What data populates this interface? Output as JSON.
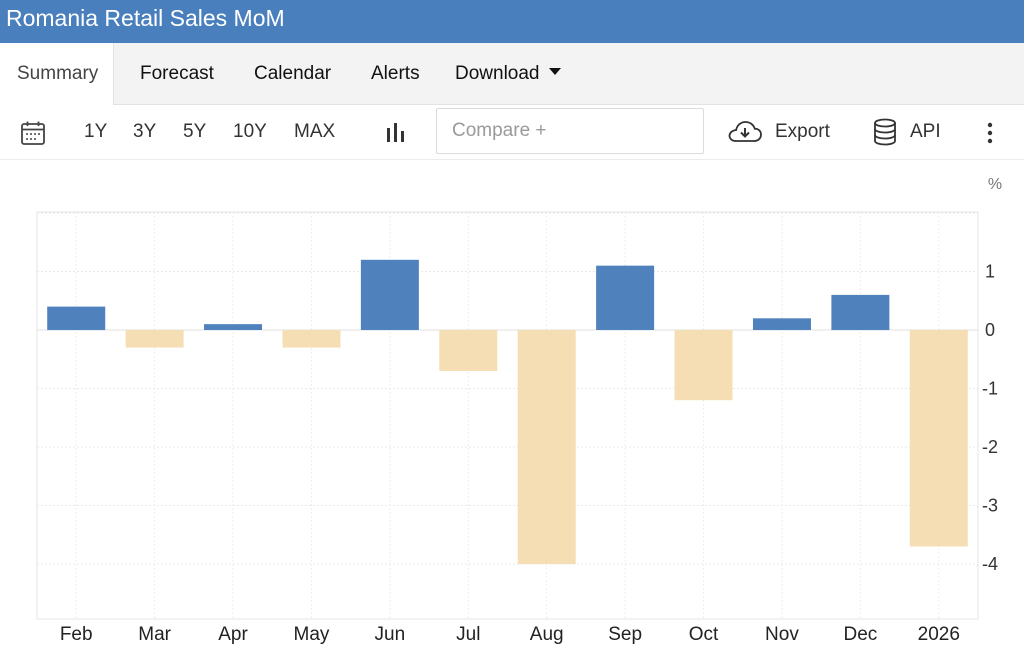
{
  "header": {
    "title": "Romania Retail Sales MoM"
  },
  "tabs": [
    {
      "label": "Summary",
      "active": true
    },
    {
      "label": "Forecast"
    },
    {
      "label": "Calendar"
    },
    {
      "label": "Alerts"
    },
    {
      "label": "Download"
    }
  ],
  "toolbar": {
    "ranges": [
      "1Y",
      "3Y",
      "5Y",
      "10Y",
      "MAX"
    ],
    "compare_placeholder": "Compare +",
    "export_label": "Export",
    "api_label": "API",
    "icons": [
      "calendar-icon",
      "bar-chart-icon",
      "cloud-download-icon",
      "database-icon",
      "more-vertical-icon"
    ]
  },
  "chart_data": {
    "type": "bar",
    "unit": "%",
    "categories": [
      "Feb",
      "Mar",
      "Apr",
      "May",
      "Jun",
      "Jul",
      "Aug",
      "Sep",
      "Oct",
      "Nov",
      "Dec",
      "2026"
    ],
    "values": [
      0.4,
      -0.3,
      0.1,
      -0.3,
      1.2,
      -0.7,
      -4.0,
      1.1,
      -1.2,
      0.2,
      0.6,
      -3.7
    ],
    "yticks": [
      1,
      0,
      -1,
      -2,
      -3,
      -4
    ],
    "ylim": [
      -5,
      2
    ],
    "colors": {
      "positive": "#4f81bd",
      "negative": "#f5deb3"
    },
    "grid": true
  }
}
